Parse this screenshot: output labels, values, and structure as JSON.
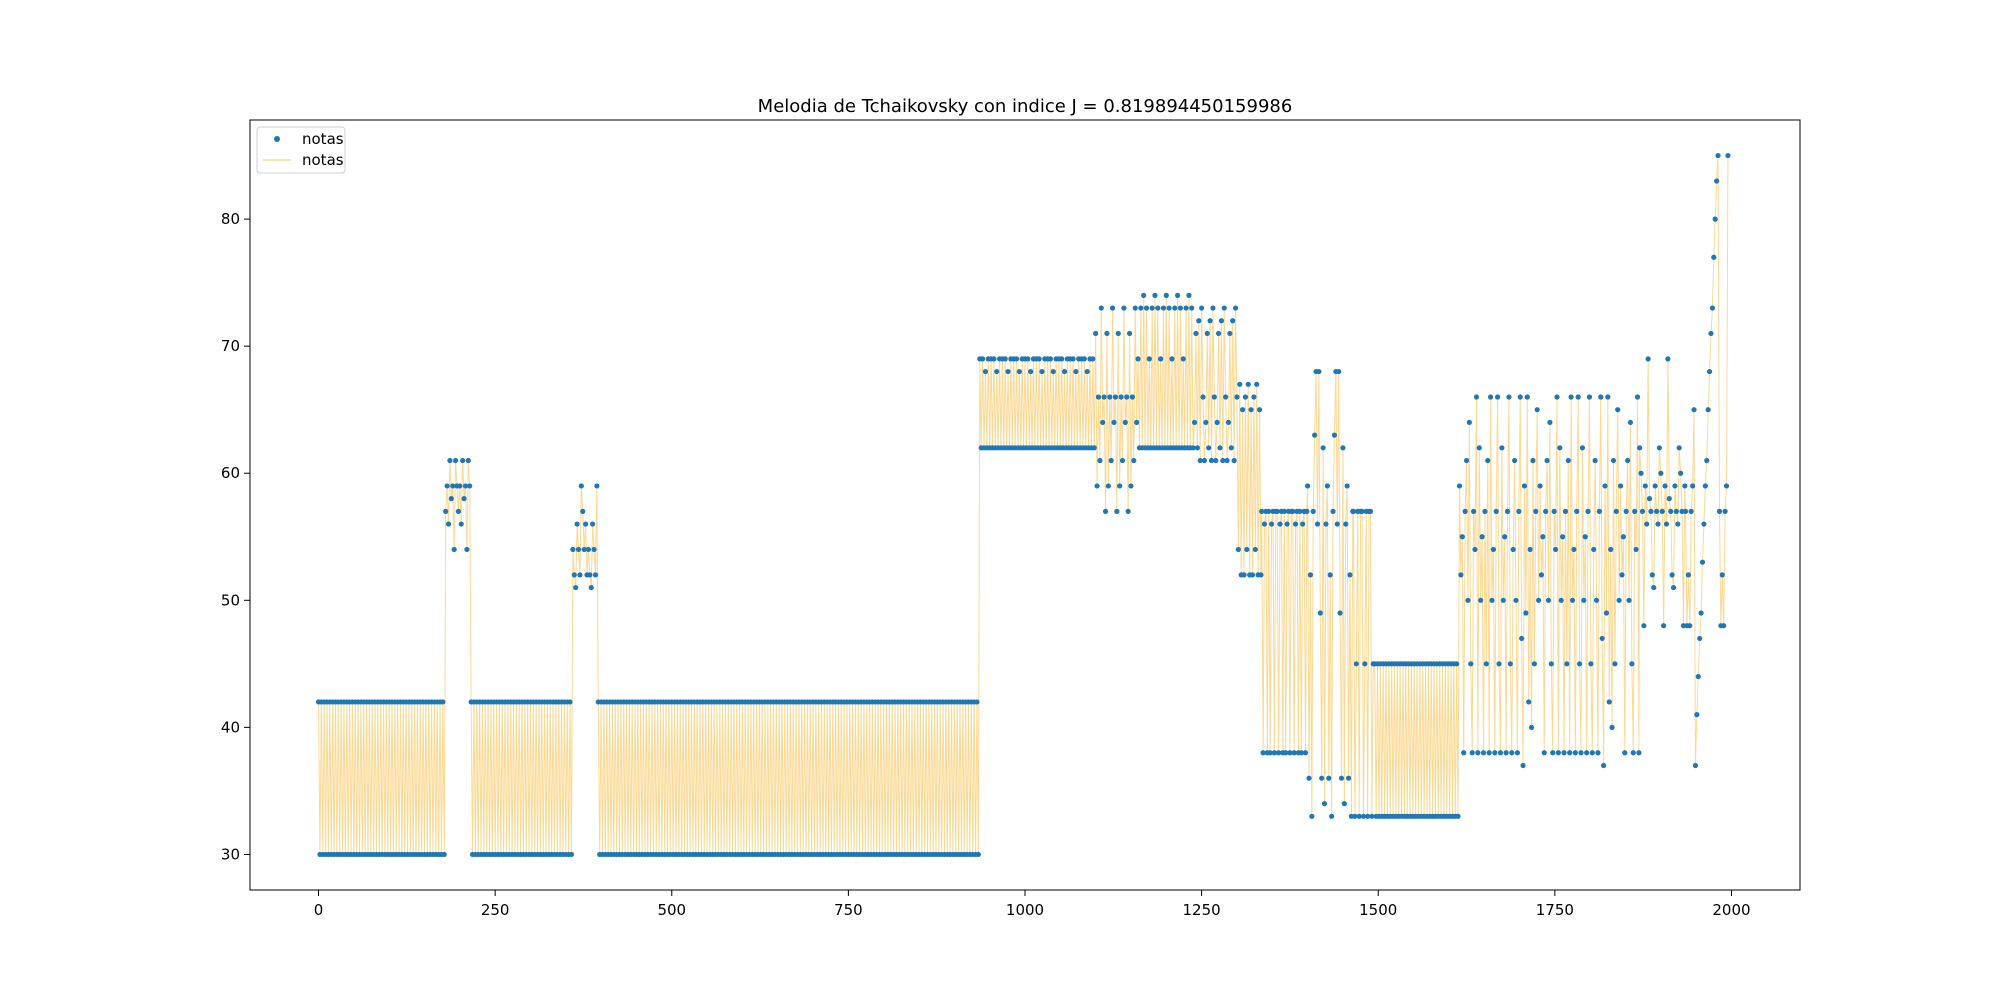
{
  "chart_data": {
    "type": "line",
    "title": "Melodia de Tchaikovsky con indice J = 0.819894450159986",
    "xlabel": "",
    "ylabel": "",
    "xlim": [
      -97,
      2097
    ],
    "ylim": [
      27.2,
      87.8
    ],
    "xticks": [
      0,
      250,
      500,
      750,
      1000,
      1250,
      1500,
      1750,
      2000
    ],
    "yticks": [
      30,
      40,
      50,
      60,
      70,
      80
    ],
    "xtick_labels": [
      "0",
      "250",
      "500",
      "750",
      "1000",
      "1250",
      "1500",
      "1750",
      "2000"
    ],
    "ytick_labels": [
      "30",
      "40",
      "50",
      "60",
      "70",
      "80"
    ],
    "grid": false,
    "legend": {
      "position": "top-left",
      "entries": [
        {
          "label": "notas",
          "style": "marker",
          "color": "#1f77b4"
        },
        {
          "label": "notas",
          "style": "line",
          "color": "#fdd893"
        }
      ]
    },
    "series": [
      {
        "name": "notas",
        "style": "marker",
        "color": "#1f77b4",
        "source": "segments"
      },
      {
        "name": "notas",
        "style": "line",
        "color": "#fdd893",
        "source": "segments"
      }
    ],
    "segments": [
      {
        "x": [
          0,
          180
        ],
        "pattern": [
          42,
          30
        ]
      },
      {
        "x": [
          180,
          216
        ],
        "pattern": [
          57,
          59,
          56,
          61,
          58,
          59,
          54,
          61,
          59
        ]
      },
      {
        "x": [
          216,
          360
        ],
        "pattern": [
          42,
          30
        ]
      },
      {
        "x": [
          360,
          396
        ],
        "pattern": [
          54,
          52,
          51,
          56,
          54,
          52,
          59,
          57,
          54,
          56,
          52
        ]
      },
      {
        "x": [
          396,
          936
        ],
        "pattern": [
          42,
          30
        ]
      },
      {
        "x": [
          936,
          1100
        ],
        "pattern": [
          69,
          62,
          69,
          62,
          68,
          62,
          69,
          62
        ]
      },
      {
        "x": [
          1100,
          1160
        ],
        "pattern": [
          71,
          59,
          66,
          61,
          73,
          64,
          66,
          57
        ]
      },
      {
        "x": [
          1160,
          1240
        ],
        "pattern": [
          69,
          62,
          73,
          62,
          74,
          62,
          73,
          62
        ]
      },
      {
        "x": [
          1240,
          1300
        ],
        "pattern": [
          64,
          71,
          62,
          72,
          61,
          73,
          66,
          61
        ]
      },
      {
        "x": [
          1300,
          1335
        ],
        "pattern": [
          66,
          54,
          67,
          52,
          65,
          52
        ]
      },
      {
        "x": [
          1335,
          1400
        ],
        "pattern": [
          57,
          38,
          56,
          57,
          38,
          57,
          38,
          56,
          57,
          38,
          57
        ]
      },
      {
        "x": [
          1400,
          1465
        ],
        "pattern": [
          59,
          36,
          52,
          33,
          57,
          63,
          68,
          56,
          68,
          49,
          36,
          62,
          34,
          56
        ]
      },
      {
        "x": [
          1465,
          1495
        ],
        "pattern": [
          57,
          33,
          45,
          57,
          33,
          57
        ]
      },
      {
        "x": [
          1495,
          1615
        ],
        "pattern": [
          45,
          33
        ]
      },
      {
        "x": [
          1615,
          1870
        ],
        "pattern": [
          59,
          52,
          55,
          38,
          57,
          61,
          50,
          64,
          45,
          38,
          57,
          54,
          66,
          38,
          62,
          50,
          55,
          38,
          57,
          45,
          61,
          38,
          66,
          50,
          54,
          38,
          57,
          66,
          45,
          38,
          62,
          50,
          55,
          38,
          57,
          66,
          45,
          38,
          54,
          61,
          50,
          38,
          57,
          66,
          47,
          37,
          59,
          49,
          66,
          42,
          54,
          40,
          61,
          45,
          57,
          65,
          50
        ]
      },
      {
        "x": [
          1870,
          1935
        ],
        "pattern": [
          62,
          60,
          57,
          48,
          59,
          56,
          69,
          58,
          57,
          52,
          51,
          59,
          57,
          56
        ]
      },
      {
        "x": [
          1935,
          1995
        ],
        "pattern": [
          57,
          48,
          52,
          48,
          57,
          59,
          65,
          37,
          41,
          44,
          47,
          49,
          53,
          56,
          59,
          61,
          65,
          68,
          71,
          73,
          77,
          80,
          83,
          85
        ]
      }
    ]
  }
}
